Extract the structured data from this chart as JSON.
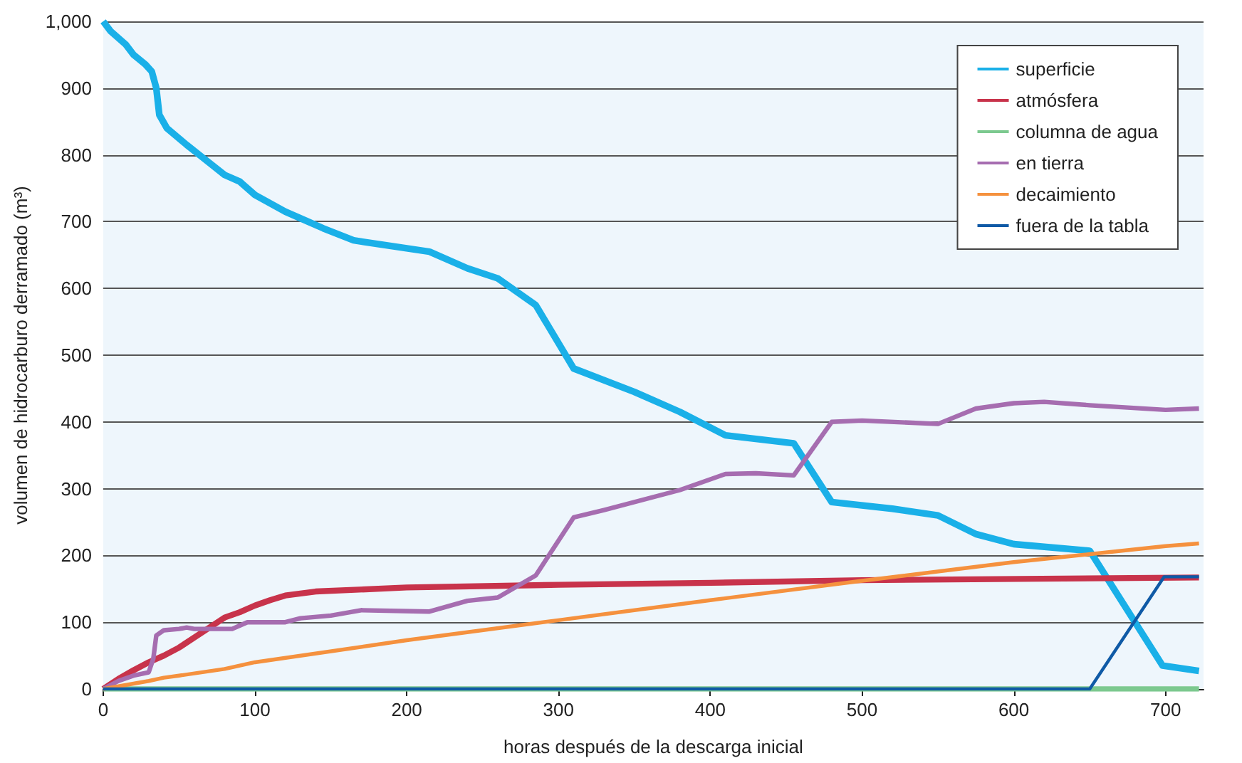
{
  "chart_data": {
    "type": "line",
    "xlabel": "horas después de la descarga inicial",
    "ylabel": "volumen de hidrocarburo derramado (m³)",
    "xlim": [
      0,
      725
    ],
    "xticks": [
      0,
      100,
      200,
      300,
      400,
      500,
      600,
      700
    ],
    "ylim": [
      0,
      1000
    ],
    "yticks": [
      0,
      100,
      200,
      300,
      400,
      500,
      600,
      700,
      800,
      900,
      {
        "value": 1000,
        "label": "1,000"
      }
    ],
    "grid": "y",
    "legend": "top right",
    "marker": "none",
    "line_style": "solid",
    "series": [
      {
        "name": "superficie",
        "color": "#1ab0e8",
        "x": [
          0,
          5,
          15,
          20,
          28,
          32,
          35,
          37,
          42,
          55,
          65,
          80,
          90,
          100,
          120,
          135,
          145,
          165,
          215,
          240,
          260,
          285,
          310,
          350,
          380,
          410,
          440,
          455,
          480,
          520,
          550,
          575,
          600,
          650,
          698,
          722
        ],
        "values": [
          1000,
          985,
          965,
          950,
          935,
          925,
          900,
          860,
          840,
          815,
          797,
          770,
          760,
          740,
          715,
          700,
          690,
          672,
          655,
          630,
          615,
          575,
          480,
          445,
          415,
          380,
          372,
          368,
          280,
          270,
          260,
          232,
          217,
          207,
          35,
          27
        ]
      },
      {
        "name": "atmósfera",
        "color": "#c8334b",
        "x": [
          0,
          10,
          20,
          30,
          40,
          50,
          60,
          70,
          80,
          90,
          100,
          110,
          120,
          140,
          200,
          300,
          400,
          500,
          722
        ],
        "values": [
          0,
          15,
          28,
          40,
          50,
          62,
          77,
          92,
          107,
          115,
          125,
          133,
          140,
          146,
          152,
          156,
          159,
          163,
          167
        ]
      },
      {
        "name": "columna de agua",
        "color": "#7cc98f",
        "x": [
          0,
          722
        ],
        "values": [
          0,
          0
        ]
      },
      {
        "name": "en tierra",
        "color": "#a66db0",
        "x": [
          0,
          10,
          20,
          30,
          33,
          35,
          40,
          50,
          55,
          60,
          85,
          95,
          120,
          130,
          150,
          170,
          215,
          240,
          260,
          285,
          310,
          330,
          380,
          410,
          430,
          455,
          480,
          500,
          550,
          575,
          600,
          620,
          650,
          700,
          722
        ],
        "values": [
          0,
          12,
          20,
          25,
          45,
          80,
          88,
          90,
          92,
          90,
          90,
          100,
          100,
          106,
          110,
          118,
          116,
          132,
          137,
          170,
          257,
          268,
          298,
          322,
          323,
          320,
          400,
          402,
          397,
          420,
          428,
          430,
          425,
          418,
          420
        ]
      },
      {
        "name": "decaimiento",
        "color": "#f5913e",
        "x": [
          0,
          20,
          30,
          40,
          50,
          80,
          100,
          200,
          300,
          400,
          500,
          600,
          700,
          722
        ],
        "values": [
          0,
          8,
          12,
          17,
          20,
          30,
          40,
          73,
          103,
          133,
          162,
          190,
          214,
          218
        ]
      },
      {
        "name": "fuera de la tabla",
        "color": "#0f5aa6",
        "x": [
          0,
          650,
          699,
          722
        ],
        "values": [
          0,
          0,
          168,
          168
        ]
      }
    ]
  }
}
